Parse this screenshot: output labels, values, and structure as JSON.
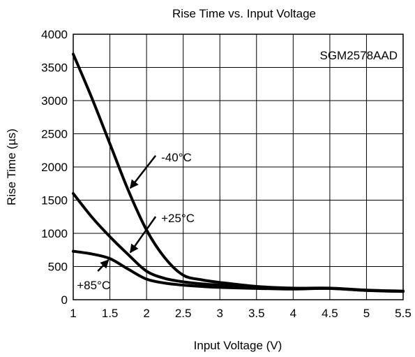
{
  "chart_data": {
    "type": "line",
    "title": "Rise Time vs. Input Voltage",
    "xlabel": "Input Voltage (V)",
    "ylabel": "Rise Time (µs)",
    "xlim": [
      1,
      5.5
    ],
    "ylim": [
      0,
      4000
    ],
    "grid": true,
    "x_ticks": [
      "1",
      "1.5",
      "2",
      "2.5",
      "3",
      "3.5",
      "4",
      "4.5",
      "5",
      "5.5"
    ],
    "y_ticks": [
      "0",
      "500",
      "1000",
      "1500",
      "2000",
      "2500",
      "3000",
      "3500",
      "4000"
    ],
    "device_label": "SGM2578AAD",
    "series": [
      {
        "name": "-40°C",
        "x": [
          1,
          1.25,
          1.5,
          1.75,
          2,
          2.25,
          2.5,
          2.75,
          3,
          3.5,
          4,
          4.5,
          5,
          5.5
        ],
        "y": [
          3700,
          3050,
          2350,
          1650,
          1050,
          630,
          370,
          300,
          260,
          200,
          175,
          175,
          145,
          130
        ]
      },
      {
        "name": "+25°C",
        "x": [
          1,
          1.25,
          1.5,
          1.75,
          2,
          2.25,
          2.5,
          2.75,
          3,
          3.5,
          4,
          4.5,
          5,
          5.5
        ],
        "y": [
          1600,
          1250,
          950,
          680,
          430,
          320,
          270,
          240,
          220,
          190,
          170,
          170,
          140,
          125
        ]
      },
      {
        "name": "+85°C",
        "x": [
          1,
          1.25,
          1.5,
          1.75,
          2,
          2.25,
          2.5,
          2.75,
          3,
          3.5,
          4,
          4.5,
          5,
          5.5
        ],
        "y": [
          730,
          690,
          620,
          460,
          310,
          250,
          220,
          200,
          185,
          170,
          160,
          170,
          140,
          125
        ]
      }
    ],
    "annotations": [
      {
        "text": "-40°C",
        "series": "-40°C",
        "at_x": 1.75,
        "text_x": 2.2,
        "text_y": 2150
      },
      {
        "text": "+25°C",
        "series": "+25°C",
        "at_x": 1.75,
        "text_x": 2.2,
        "text_y": 1230
      },
      {
        "text": "+85°C",
        "series": "+85°C",
        "at_x": 1.5,
        "text_x": 1.05,
        "text_y": 220
      }
    ]
  }
}
